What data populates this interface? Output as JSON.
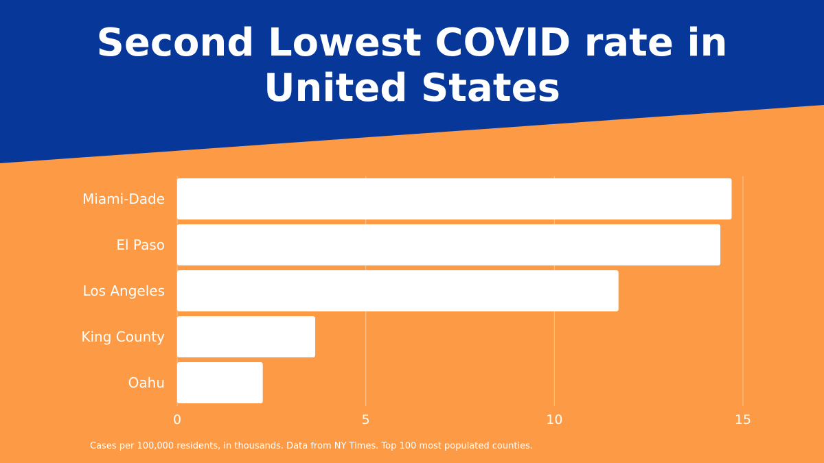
{
  "colors": {
    "header_blue": "#073899",
    "background_orange": "#FC9A45",
    "bar": "#FFFFFF",
    "text": "#FFFFFF"
  },
  "title_line1": "Second Lowest COVID rate in",
  "title_line2": "United States",
  "footnote": "Cases per 100,000 residents, in thousands. Data from NY Times. Top 100 most populated counties.",
  "chart_data": {
    "type": "bar",
    "orientation": "horizontal",
    "title": "Second Lowest COVID rate in United States",
    "categories": [
      "Miami-Dade",
      "El Paso",
      "Los Angeles",
      "King County",
      "Oahu"
    ],
    "values": [
      14.7,
      14.4,
      11.7,
      3.66,
      2.27
    ],
    "xlim": [
      0,
      15
    ],
    "x_ticks": [
      0,
      5,
      10,
      15
    ],
    "xlabel": "",
    "ylabel": "",
    "grid": true,
    "note": "Cases per 100,000 residents, in thousands"
  }
}
